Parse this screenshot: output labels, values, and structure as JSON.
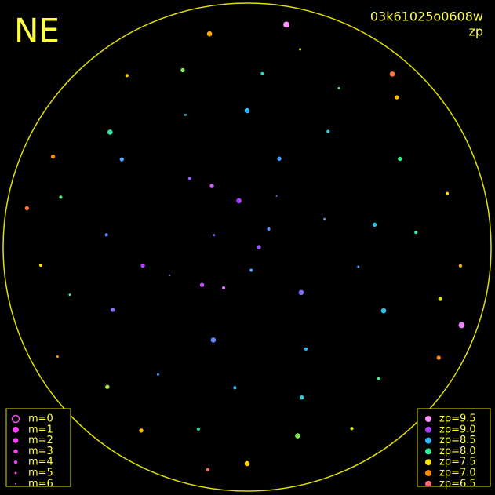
{
  "header": {
    "direction": "NE",
    "frame_id": "03k61025o0608w",
    "quantity": "zp"
  },
  "legend_m": [
    {
      "label": "m=0",
      "m": 0
    },
    {
      "label": "m=1",
      "m": 1
    },
    {
      "label": "m=2",
      "m": 2
    },
    {
      "label": "m=3",
      "m": 3
    },
    {
      "label": "m=4",
      "m": 4
    },
    {
      "label": "m=5",
      "m": 5
    },
    {
      "label": "m=6",
      "m": 6
    }
  ],
  "legend_zp": [
    {
      "label": "zp=9.5",
      "zp": 9.5,
      "color": "#ff90ff"
    },
    {
      "label": "zp=9.0",
      "zp": 9.0,
      "color": "#b040ff"
    },
    {
      "label": "zp=8.5",
      "zp": 8.5,
      "color": "#30b8ff"
    },
    {
      "label": "zp=8.0",
      "zp": 8.0,
      "color": "#30f090"
    },
    {
      "label": "zp=7.5",
      "zp": 7.5,
      "color": "#ffe000"
    },
    {
      "label": "zp=7.0",
      "zp": 7.0,
      "color": "#ff8c00"
    },
    {
      "label": "zp=6.5",
      "zp": 6.5,
      "color": "#ff6070"
    }
  ],
  "stars": [
    [
      0,
      0.05,
      8.9,
      3
    ],
    [
      40,
      0.12,
      8.7,
      4
    ],
    [
      100,
      0.2,
      9.0,
      2
    ],
    [
      160,
      0.15,
      8.8,
      5
    ],
    [
      220,
      0.25,
      9.1,
      3
    ],
    [
      280,
      0.1,
      8.6,
      4
    ],
    [
      320,
      0.3,
      8.8,
      2
    ],
    [
      20,
      0.35,
      8.7,
      5
    ],
    [
      70,
      0.4,
      8.6,
      3
    ],
    [
      130,
      0.38,
      8.9,
      4
    ],
    [
      190,
      0.45,
      9.0,
      3
    ],
    [
      250,
      0.42,
      8.7,
      2
    ],
    [
      300,
      0.5,
      8.5,
      4
    ],
    [
      350,
      0.48,
      8.6,
      5
    ],
    [
      10,
      0.55,
      8.4,
      3
    ],
    [
      55,
      0.6,
      8.3,
      4
    ],
    [
      90,
      0.58,
      8.5,
      2
    ],
    [
      115,
      0.62,
      8.4,
      5
    ],
    [
      145,
      0.65,
      8.6,
      3
    ],
    [
      175,
      0.6,
      8.7,
      4
    ],
    [
      205,
      0.63,
      8.8,
      3
    ],
    [
      235,
      0.66,
      8.6,
      5
    ],
    [
      265,
      0.6,
      8.5,
      4
    ],
    [
      290,
      0.68,
      8.3,
      3
    ],
    [
      335,
      0.64,
      8.4,
      2
    ],
    [
      5,
      0.72,
      8.1,
      4
    ],
    [
      30,
      0.75,
      8.0,
      3
    ],
    [
      60,
      0.78,
      7.9,
      5
    ],
    [
      85,
      0.74,
      8.2,
      4
    ],
    [
      110,
      0.8,
      7.8,
      3
    ],
    [
      140,
      0.76,
      8.1,
      2
    ],
    [
      165,
      0.82,
      7.9,
      4
    ],
    [
      195,
      0.78,
      8.0,
      5
    ],
    [
      225,
      0.84,
      7.7,
      3
    ],
    [
      255,
      0.8,
      8.1,
      4
    ],
    [
      285,
      0.83,
      7.8,
      2
    ],
    [
      315,
      0.79,
      8.0,
      4
    ],
    [
      345,
      0.85,
      7.6,
      3
    ],
    [
      15,
      0.88,
      7.5,
      4
    ],
    [
      45,
      0.9,
      7.3,
      3
    ],
    [
      75,
      0.87,
      7.6,
      5
    ],
    [
      100,
      0.92,
      7.2,
      2
    ],
    [
      125,
      0.89,
      7.4,
      4
    ],
    [
      155,
      0.91,
      7.0,
      3
    ],
    [
      185,
      0.88,
      7.5,
      4
    ],
    [
      210,
      0.93,
      7.1,
      5
    ],
    [
      240,
      0.9,
      7.3,
      3
    ],
    [
      270,
      0.92,
      7.4,
      2
    ],
    [
      300,
      0.89,
      7.6,
      4
    ],
    [
      330,
      0.94,
      6.9,
      3
    ],
    [
      355,
      0.91,
      7.2,
      4
    ],
    [
      50,
      0.96,
      6.8,
      2
    ],
    [
      170,
      0.95,
      6.7,
      3
    ],
    [
      260,
      0.96,
      6.6,
      4
    ],
    [
      340,
      0.97,
      9.4,
      1
    ],
    [
      80,
      0.96,
      9.5,
      1
    ],
    [
      120,
      0.3,
      9.2,
      3
    ],
    [
      240,
      0.2,
      9.3,
      4
    ],
    [
      60,
      0.25,
      8.9,
      6
    ],
    [
      200,
      0.35,
      8.8,
      6
    ]
  ]
}
